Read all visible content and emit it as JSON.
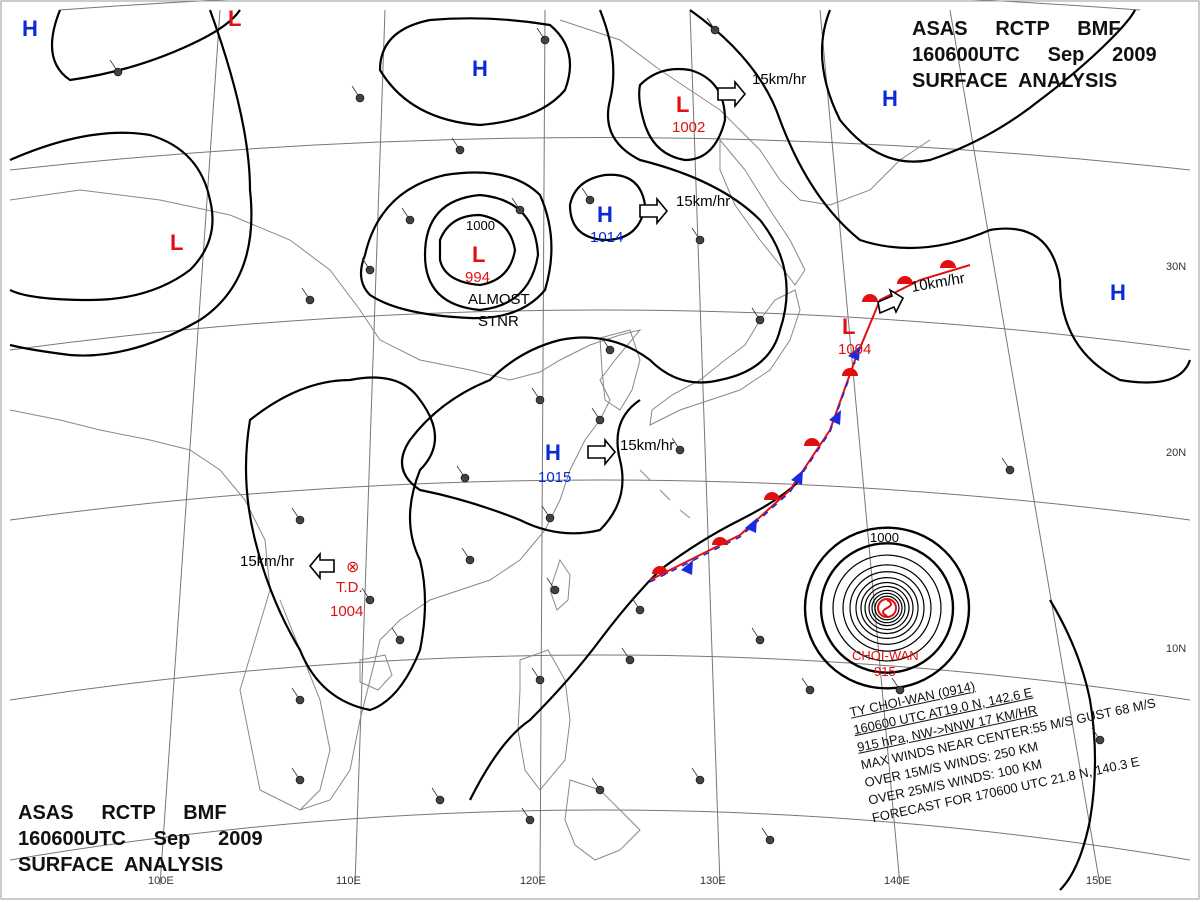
{
  "header": {
    "line1": "ASAS     RCTP     BMF",
    "line2": "160600UTC     Sep     2009",
    "line3": "SURFACE  ANALYSIS"
  },
  "footer": {
    "line1": "ASAS     RCTP     BMF",
    "line2": "160600UTC     Sep     2009",
    "line3": "SURFACE  ANALYSIS"
  },
  "colors": {
    "high": "#0a2ad6",
    "low": "#e01010",
    "isobar": "#000000",
    "grid": "#777777",
    "land": "#888888",
    "warm_front": "#e01010",
    "cold_front": "#1a2ae0"
  },
  "pressure_centers": [
    {
      "type": "H",
      "value": ""
    },
    {
      "type": "L",
      "value": ""
    },
    {
      "type": "H",
      "value": ""
    },
    {
      "type": "L",
      "value": "1002"
    },
    {
      "type": "H",
      "value": ""
    },
    {
      "type": "L",
      "value": ""
    },
    {
      "type": "L",
      "value": "994"
    },
    {
      "type": "H",
      "value": "1014"
    },
    {
      "type": "H",
      "value": ""
    },
    {
      "type": "L",
      "value": "1004"
    },
    {
      "type": "H",
      "value": "1015"
    }
  ],
  "isobar_labels": [
    "1000",
    "1000"
  ],
  "motion_vectors": [
    {
      "text": "15km/hr"
    },
    {
      "text": "15km/hr"
    },
    {
      "text": "15km/hr"
    },
    {
      "text": "10km/hr"
    },
    {
      "text": "15km/hr"
    }
  ],
  "annotations": {
    "almost": "ALMOST",
    "stnr": "STNR",
    "td_label": "T.D.",
    "td_pressure": "1004",
    "typhoon_name": "CHOI-WAN",
    "typhoon_pressure": "915"
  },
  "latitude_labels": [
    "30N",
    "20N",
    "10N"
  ],
  "longitude_labels": [
    "100E",
    "110E",
    "120E",
    "130E",
    "140E",
    "150E"
  ],
  "typhoon_bulletin": [
    "TY  CHOI-WAN  (0914)",
    "160600 UTC  AT19.0 N, 142.6 E",
    "915 hPa, NW->NNW  17 KM/HR",
    "MAX WINDS NEAR CENTER:55 M/S GUST 68 M/S",
    "OVER 15M/S WINDS: 250 KM",
    "OVER 25M/S WINDS: 100 KM",
    "FORECAST FOR 170600 UTC 21.8 N, 140.3 E"
  ]
}
